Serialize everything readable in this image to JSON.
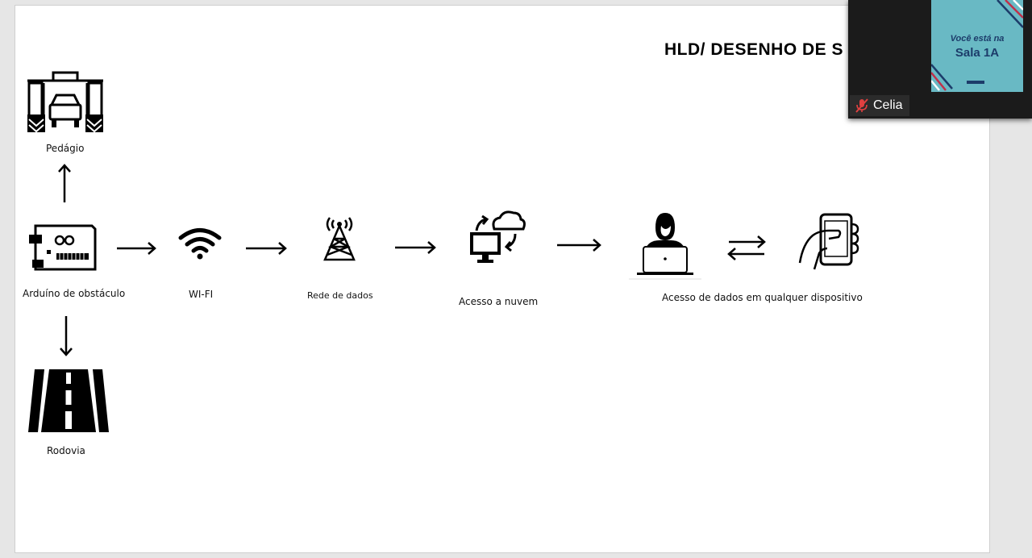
{
  "slide": {
    "title": "HLD/ DESENHO DE S",
    "nodes": {
      "toll": {
        "label": "Pedágio",
        "icon": "toll-booth-icon"
      },
      "arduino": {
        "label": "Arduíno de obstáculo",
        "icon": "arduino-board-icon"
      },
      "highway": {
        "label": "Rodovia",
        "icon": "highway-road-icon"
      },
      "wifi": {
        "label": "WI-FI",
        "icon": "wifi-icon"
      },
      "network": {
        "label": "Rede de dados",
        "icon": "cell-tower-icon"
      },
      "cloud": {
        "label": "Acesso a nuvem",
        "icon": "cloud-sync-icon"
      },
      "user": {
        "icon": "person-laptop-icon"
      },
      "device": {
        "label": "Acesso de dados em qualquer dispositivo",
        "icon": "hand-phone-icon"
      }
    }
  },
  "video_call": {
    "participant_name": "Celia",
    "mic_state": "muted",
    "thumbnail_line1": "Você está na",
    "thumbnail_line2": "Sala 1A",
    "accent_color": "#69b9c4"
  }
}
